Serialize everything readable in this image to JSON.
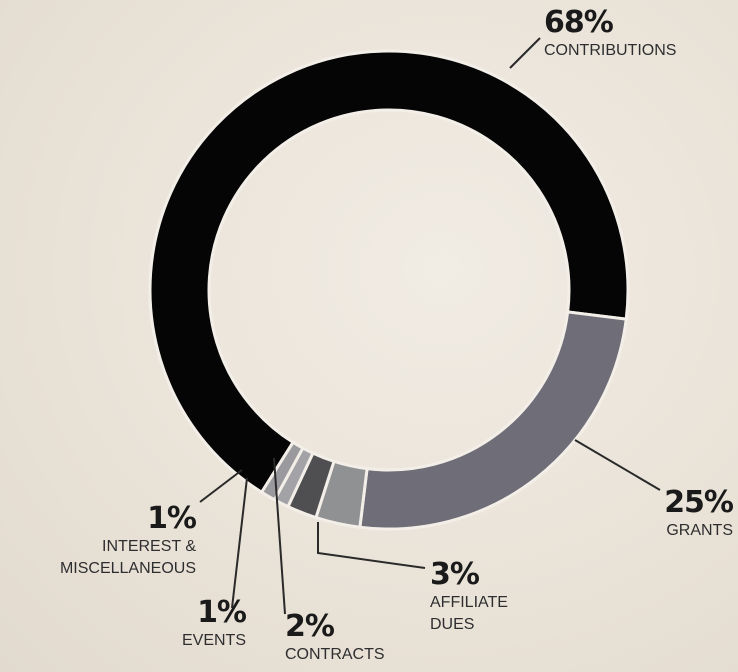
{
  "chart_data": {
    "type": "donut",
    "categories": [
      "CONTRIBUTIONS",
      "GRANTS",
      "AFFILIATE DUES",
      "CONTRACTS",
      "EVENTS",
      "INTEREST & MISCELLANEOUS"
    ],
    "values": [
      68,
      25,
      3,
      2,
      1,
      1
    ],
    "value_labels": [
      "68%",
      "25%",
      "3%",
      "2%",
      "1%",
      "1%"
    ],
    "colors": [
      "#050505",
      "#6f6d77",
      "#909193",
      "#4f4f51",
      "#a3a3a7",
      "#9a9a9e"
    ]
  }
}
